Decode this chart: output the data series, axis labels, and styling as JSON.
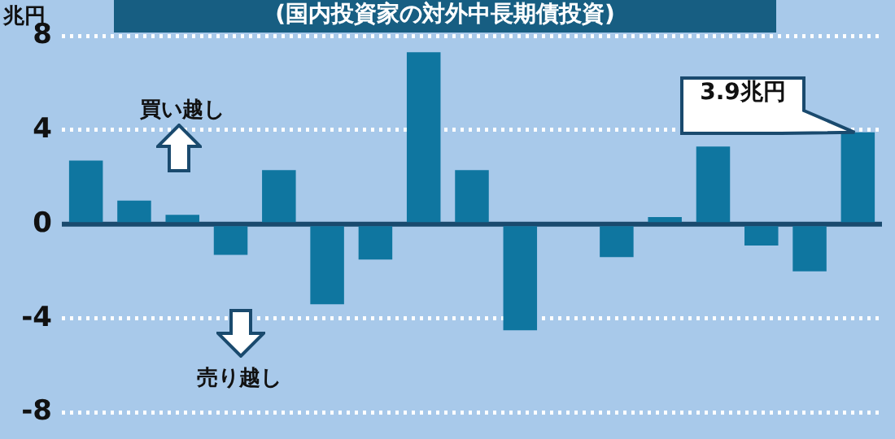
{
  "chart_data": {
    "type": "bar",
    "title": "(国内投資家の対外中長期債投資)",
    "ylabel": "兆円",
    "categories": [
      null,
      null,
      null,
      null,
      null,
      null,
      null,
      null,
      null,
      null,
      null,
      null,
      null,
      null,
      null,
      null,
      null
    ],
    "values": [
      2.7,
      1.0,
      0.4,
      -1.3,
      2.3,
      -3.4,
      -1.5,
      7.3,
      2.3,
      -4.5,
      0,
      -1.4,
      0.3,
      3.3,
      -0.9,
      -2.0,
      3.9
    ],
    "color": "#0f76a0",
    "ref_lines": [
      {
        "axis": "y",
        "value": 0,
        "color": "#1a4a6e"
      }
    ],
    "ylim": [
      -8,
      8
    ],
    "yticks": [
      -8,
      -4,
      0,
      4,
      8
    ],
    "grid": "y",
    "legend": false,
    "tick_labels": "y",
    "annotations": [
      "買い越し",
      "売り越し",
      "3.9兆円"
    ]
  }
}
